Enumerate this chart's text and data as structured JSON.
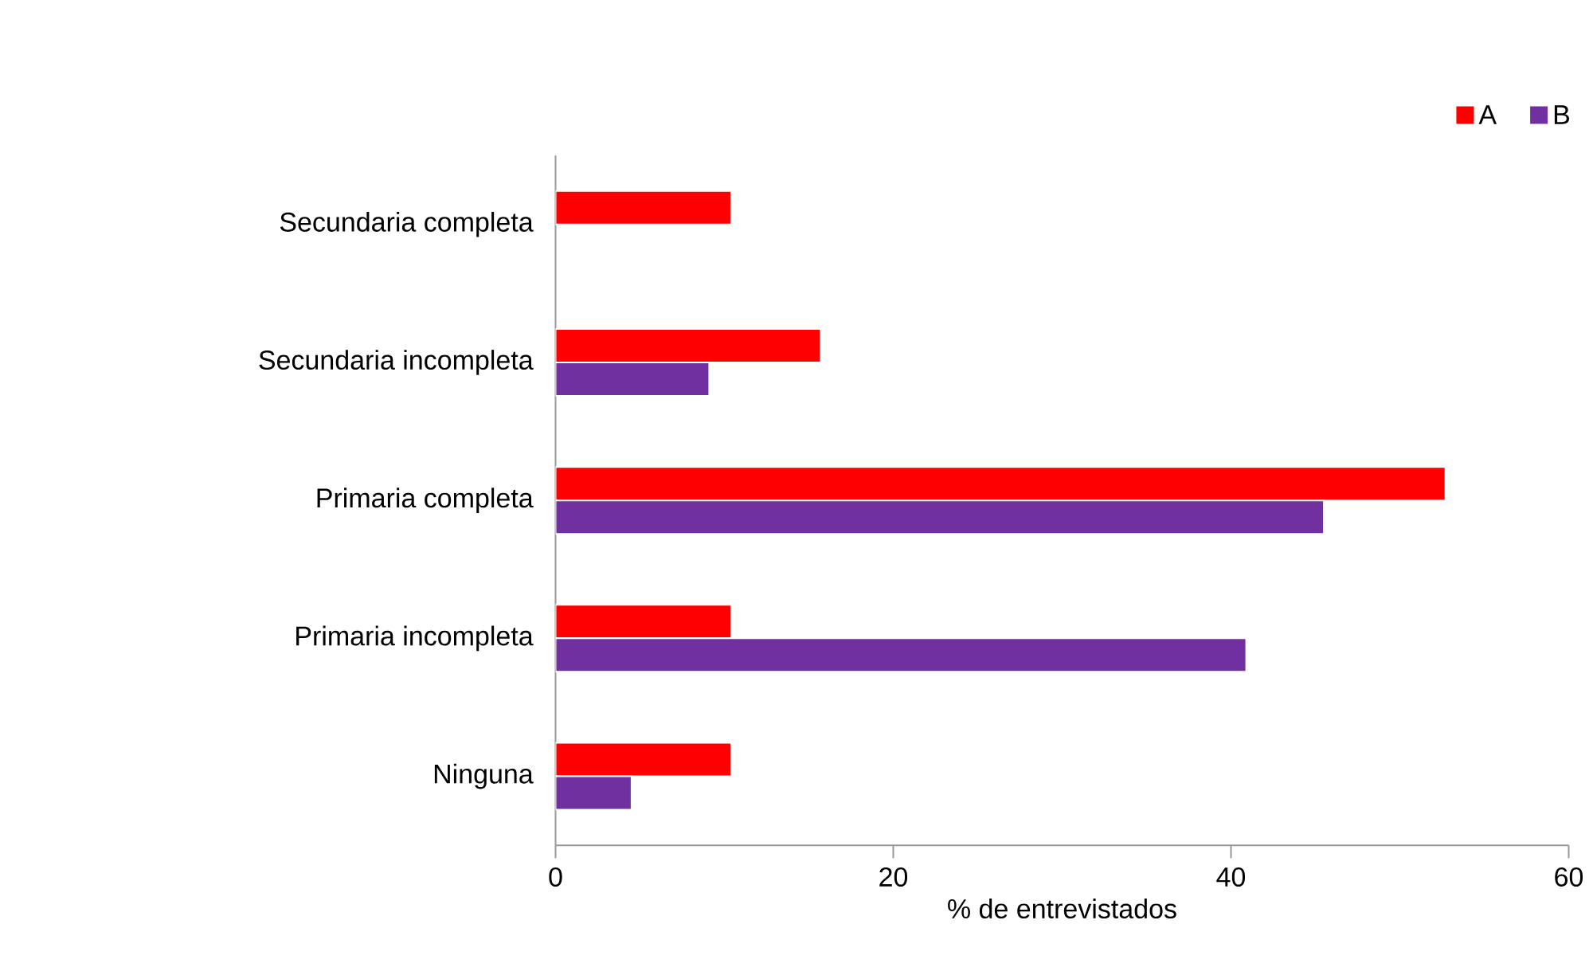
{
  "chart_data": {
    "type": "bar",
    "orientation": "horizontal",
    "xlabel": "% de entrevistados",
    "categories": [
      "Secundaria completa",
      "Secundaria incompleta",
      "Primaria completa",
      "Primaria incompleta",
      "Ninguna"
    ],
    "series": [
      {
        "name": "A",
        "color": "#ff0000",
        "values": [
          10.4,
          15.7,
          52.7,
          10.4,
          10.4
        ]
      },
      {
        "name": "B",
        "color": "#7030a0",
        "values": [
          null,
          9.1,
          45.5,
          40.9,
          4.5
        ]
      }
    ],
    "xlim": [
      0,
      60
    ],
    "xticks": [
      0,
      20,
      40,
      60
    ],
    "grid": false,
    "legend": "top right"
  }
}
